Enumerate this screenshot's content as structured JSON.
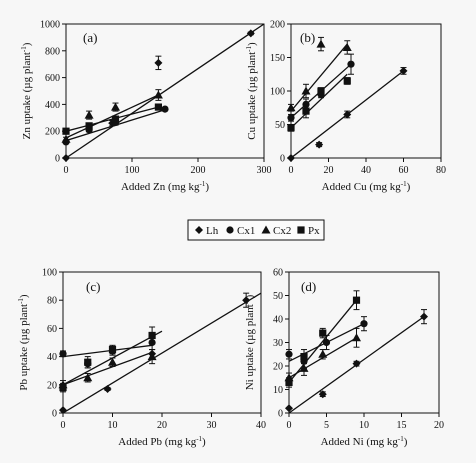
{
  "legend": {
    "entries": [
      {
        "marker": "diamond",
        "label": "Lh"
      },
      {
        "marker": "circle",
        "label": "Cx1"
      },
      {
        "marker": "triangle",
        "label": "Cx2"
      },
      {
        "marker": "square",
        "label": "Px"
      }
    ]
  },
  "chart_data": [
    {
      "type": "scatter",
      "panel_label": "(a)",
      "xlabel": "Added Zn",
      "xunit": "(mg kg",
      "xunit_sup": "-1",
      "xunit_close": ")",
      "ylabel": "Zn uptake",
      "yunit": "(µg plant",
      "yunit_sup": "-1",
      "yunit_close": ")",
      "xlim": [
        0,
        300
      ],
      "ylim": [
        0,
        1000
      ],
      "xticks": [
        "0",
        "100",
        "200",
        "300"
      ],
      "yticks": [
        "0",
        "200",
        "400",
        "600",
        "800",
        "1000"
      ],
      "xtick_values": [
        0,
        100,
        200,
        300
      ],
      "ytick_values": [
        0,
        200,
        400,
        600,
        800,
        1000
      ],
      "series": [
        {
          "name": "Lh",
          "marker": "diamond",
          "points": [
            [
              0,
              0
            ],
            [
              70,
              260
            ],
            [
              140,
              710
            ],
            [
              280,
              930
            ]
          ],
          "errors": [
            0,
            20,
            50,
            10
          ],
          "line": [
            [
              0,
              0
            ],
            [
              300,
              1000
            ]
          ]
        },
        {
          "name": "Cx1",
          "marker": "circle",
          "points": [
            [
              0,
              120
            ],
            [
              35,
              210
            ],
            [
              75,
              265
            ],
            [
              150,
              365
            ]
          ],
          "errors": [
            10,
            15,
            20,
            10
          ],
          "line": [
            [
              0,
              130
            ],
            [
              150,
              360
            ]
          ]
        },
        {
          "name": "Cx2",
          "marker": "triangle",
          "points": [
            [
              0,
              140
            ],
            [
              35,
              320
            ],
            [
              75,
              380
            ],
            [
              140,
              470
            ]
          ],
          "errors": [
            15,
            30,
            30,
            40
          ],
          "line": [
            [
              0,
              150
            ],
            [
              140,
              470
            ]
          ]
        },
        {
          "name": "Px",
          "marker": "square",
          "points": [
            [
              0,
              200
            ],
            [
              35,
              240
            ],
            [
              75,
              290
            ],
            [
              140,
              380
            ]
          ],
          "errors": [
            10,
            15,
            15,
            20
          ],
          "line": [
            [
              0,
              200
            ],
            [
              140,
              380
            ]
          ]
        }
      ]
    },
    {
      "type": "scatter",
      "panel_label": "(b)",
      "xlabel": "Added Cu",
      "xunit": "(mg kg",
      "xunit_sup": "-1",
      "xunit_close": ")",
      "ylabel": "Cu uptake",
      "yunit": "(µg plant",
      "yunit_sup": "-1",
      "yunit_close": ")",
      "xlim": [
        0,
        80
      ],
      "ylim": [
        0,
        200
      ],
      "xticks": [
        "0",
        "20",
        "40",
        "60",
        "80"
      ],
      "yticks": [
        "0",
        "50",
        "100",
        "150",
        "200"
      ],
      "xtick_values": [
        0,
        20,
        40,
        60,
        80
      ],
      "ytick_values": [
        0,
        50,
        100,
        150,
        200
      ],
      "series": [
        {
          "name": "Lh",
          "marker": "diamond",
          "points": [
            [
              0,
              0
            ],
            [
              15,
              20
            ],
            [
              30,
              65
            ],
            [
              60,
              130
            ]
          ],
          "errors": [
            0,
            3,
            5,
            5
          ],
          "line": [
            [
              0,
              0
            ],
            [
              60,
              130
            ]
          ]
        },
        {
          "name": "Cx1",
          "marker": "circle",
          "points": [
            [
              0,
              60
            ],
            [
              8,
              80
            ],
            [
              16,
              95
            ],
            [
              32,
              140
            ]
          ],
          "errors": [
            5,
            8,
            5,
            15
          ],
          "line": [
            [
              0,
              60
            ],
            [
              32,
              140
            ]
          ]
        },
        {
          "name": "Cx2",
          "marker": "triangle",
          "points": [
            [
              0,
              75
            ],
            [
              8,
              100
            ],
            [
              16,
              170
            ],
            [
              30,
              165
            ]
          ],
          "errors": [
            5,
            10,
            10,
            10
          ],
          "line": [
            [
              0,
              70
            ],
            [
              30,
              170
            ]
          ]
        },
        {
          "name": "Px",
          "marker": "square",
          "points": [
            [
              0,
              45
            ],
            [
              8,
              70
            ],
            [
              16,
              100
            ],
            [
              30,
              115
            ]
          ],
          "errors": [
            5,
            10,
            5,
            5
          ],
          "line": [
            [
              0,
              45
            ],
            [
              30,
              125
            ]
          ]
        }
      ]
    },
    {
      "type": "scatter",
      "panel_label": "(c)",
      "xlabel": "Added Pb",
      "xunit": "(mg kg",
      "xunit_sup": "-1",
      "xunit_close": ")",
      "ylabel": "Pb uptake",
      "yunit": "(µg plant",
      "yunit_sup": "-1",
      "yunit_close": ")",
      "xlim": [
        0,
        40
      ],
      "ylim": [
        0,
        100
      ],
      "xticks": [
        "0",
        "10",
        "20",
        "30",
        "40"
      ],
      "yticks": [
        "0",
        "20",
        "40",
        "60",
        "80",
        "100"
      ],
      "xtick_values": [
        0,
        10,
        20,
        30,
        40
      ],
      "ytick_values": [
        0,
        20,
        40,
        60,
        80,
        100
      ],
      "series": [
        {
          "name": "Lh",
          "marker": "diamond",
          "points": [
            [
              0,
              2
            ],
            [
              9,
              17
            ],
            [
              18,
              42
            ],
            [
              37,
              80
            ]
          ],
          "errors": [
            0,
            1,
            3,
            5
          ],
          "line": [
            [
              0,
              0
            ],
            [
              40,
              85
            ]
          ]
        },
        {
          "name": "Cx1",
          "marker": "circle",
          "points": [
            [
              0,
              42
            ],
            [
              5,
              35
            ],
            [
              10,
              44
            ],
            [
              18,
              50
            ]
          ],
          "errors": [
            2,
            3,
            3,
            5
          ],
          "line": [
            [
              0,
              40
            ],
            [
              18,
              48
            ]
          ]
        },
        {
          "name": "Cx2",
          "marker": "triangle",
          "points": [
            [
              0,
              20
            ],
            [
              5,
              25
            ],
            [
              10,
              36
            ],
            [
              18,
              40
            ]
          ],
          "errors": [
            3,
            3,
            3,
            5
          ],
          "line": [
            [
              0,
              20
            ],
            [
              18,
              43
            ]
          ]
        },
        {
          "name": "Px",
          "marker": "square",
          "points": [
            [
              0,
              18
            ],
            [
              5,
              36
            ],
            [
              10,
              45
            ],
            [
              18,
              55
            ]
          ],
          "errors": [
            3,
            4,
            3,
            6
          ],
          "line": [
            [
              0,
              20
            ],
            [
              20,
              58
            ]
          ]
        }
      ]
    },
    {
      "type": "scatter",
      "panel_label": "(d)",
      "xlabel": "Added Ni",
      "xunit": "(mg kg",
      "xunit_sup": "-1",
      "xunit_close": ")",
      "ylabel": "Ni uptake",
      "yunit": "(µg plant",
      "yunit_sup": "-1",
      "yunit_close": ")",
      "xlim": [
        0,
        20
      ],
      "ylim": [
        0,
        60
      ],
      "xticks": [
        "0",
        "5",
        "10",
        "15",
        "20"
      ],
      "yticks": [
        "0",
        "10",
        "20",
        "30",
        "40",
        "50",
        "60"
      ],
      "xtick_values": [
        0,
        5,
        10,
        15,
        20
      ],
      "ytick_values": [
        0,
        10,
        20,
        30,
        40,
        50,
        60
      ],
      "series": [
        {
          "name": "Lh",
          "marker": "diamond",
          "points": [
            [
              0,
              2
            ],
            [
              4.5,
              8
            ],
            [
              9,
              21
            ],
            [
              18,
              41
            ]
          ],
          "errors": [
            0,
            1,
            1,
            3
          ],
          "line": [
            [
              0,
              0
            ],
            [
              18,
              41
            ]
          ]
        },
        {
          "name": "Cx1",
          "marker": "circle",
          "points": [
            [
              0,
              25
            ],
            [
              2,
              22
            ],
            [
              5,
              30
            ],
            [
              10,
              38
            ]
          ],
          "errors": [
            2,
            3,
            3,
            3
          ],
          "line": [
            [
              0,
              22
            ],
            [
              10,
              38
            ]
          ]
        },
        {
          "name": "Cx2",
          "marker": "triangle",
          "points": [
            [
              0,
              15
            ],
            [
              2,
              19
            ],
            [
              4.5,
              25
            ],
            [
              9,
              32
            ]
          ],
          "errors": [
            2,
            3,
            2,
            4
          ],
          "line": [
            [
              0,
              15
            ],
            [
              9,
              32
            ]
          ]
        },
        {
          "name": "Px",
          "marker": "square",
          "points": [
            [
              0,
              13
            ],
            [
              2,
              24
            ],
            [
              4.5,
              34
            ],
            [
              9,
              48
            ]
          ],
          "errors": [
            2,
            3,
            2,
            4
          ],
          "line": [
            [
              0,
              13
            ],
            [
              9,
              48
            ]
          ]
        }
      ]
    }
  ]
}
